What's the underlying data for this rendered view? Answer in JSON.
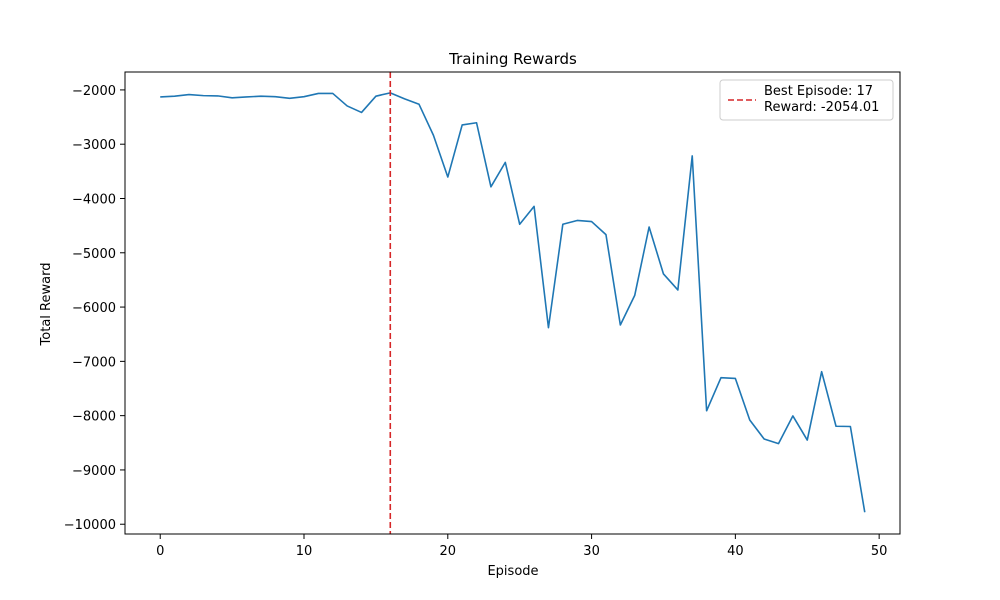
{
  "chart_data": {
    "type": "line",
    "title": "Training Rewards",
    "xlabel": "Episode",
    "ylabel": "Total Reward",
    "xlim": [
      -2.45,
      51.45
    ],
    "ylim": [
      -10180,
      -1670
    ],
    "xticks": [
      0,
      10,
      20,
      30,
      40,
      50
    ],
    "yticks": [
      -10000,
      -9000,
      -8000,
      -7000,
      -6000,
      -5000,
      -4000,
      -3000,
      -2000
    ],
    "grid": false,
    "legend_position": "top-right",
    "series": [
      {
        "color": "#1f77b4",
        "x": [
          0,
          1,
          2,
          3,
          4,
          5,
          6,
          7,
          8,
          9,
          10,
          11,
          12,
          13,
          14,
          15,
          16,
          17,
          18,
          19,
          20,
          21,
          22,
          23,
          24,
          25,
          26,
          27,
          28,
          29,
          30,
          31,
          32,
          33,
          34,
          35,
          36,
          37,
          38,
          39,
          40,
          41,
          42,
          43,
          44,
          45,
          46,
          47,
          48,
          49
        ],
        "y": [
          -2130,
          -2115,
          -2085,
          -2105,
          -2110,
          -2145,
          -2130,
          -2115,
          -2125,
          -2155,
          -2125,
          -2065,
          -2065,
          -2295,
          -2415,
          -2115,
          -2054.01,
          -2165,
          -2265,
          -2835,
          -3605,
          -2645,
          -2605,
          -3785,
          -3335,
          -4475,
          -4145,
          -6380,
          -4475,
          -4405,
          -4425,
          -4665,
          -6330,
          -5785,
          -4525,
          -5390,
          -5685,
          -3215,
          -7910,
          -7300,
          -7315,
          -8080,
          -8430,
          -8515,
          -8005,
          -8450,
          -7190,
          -8195,
          -8200,
          -9780
        ]
      }
    ],
    "reference_line": {
      "x": 16,
      "color": "#d62728",
      "style": "dashed",
      "legend_lines": [
        "Best Episode: 17",
        "Reward: -2054.01"
      ]
    }
  }
}
